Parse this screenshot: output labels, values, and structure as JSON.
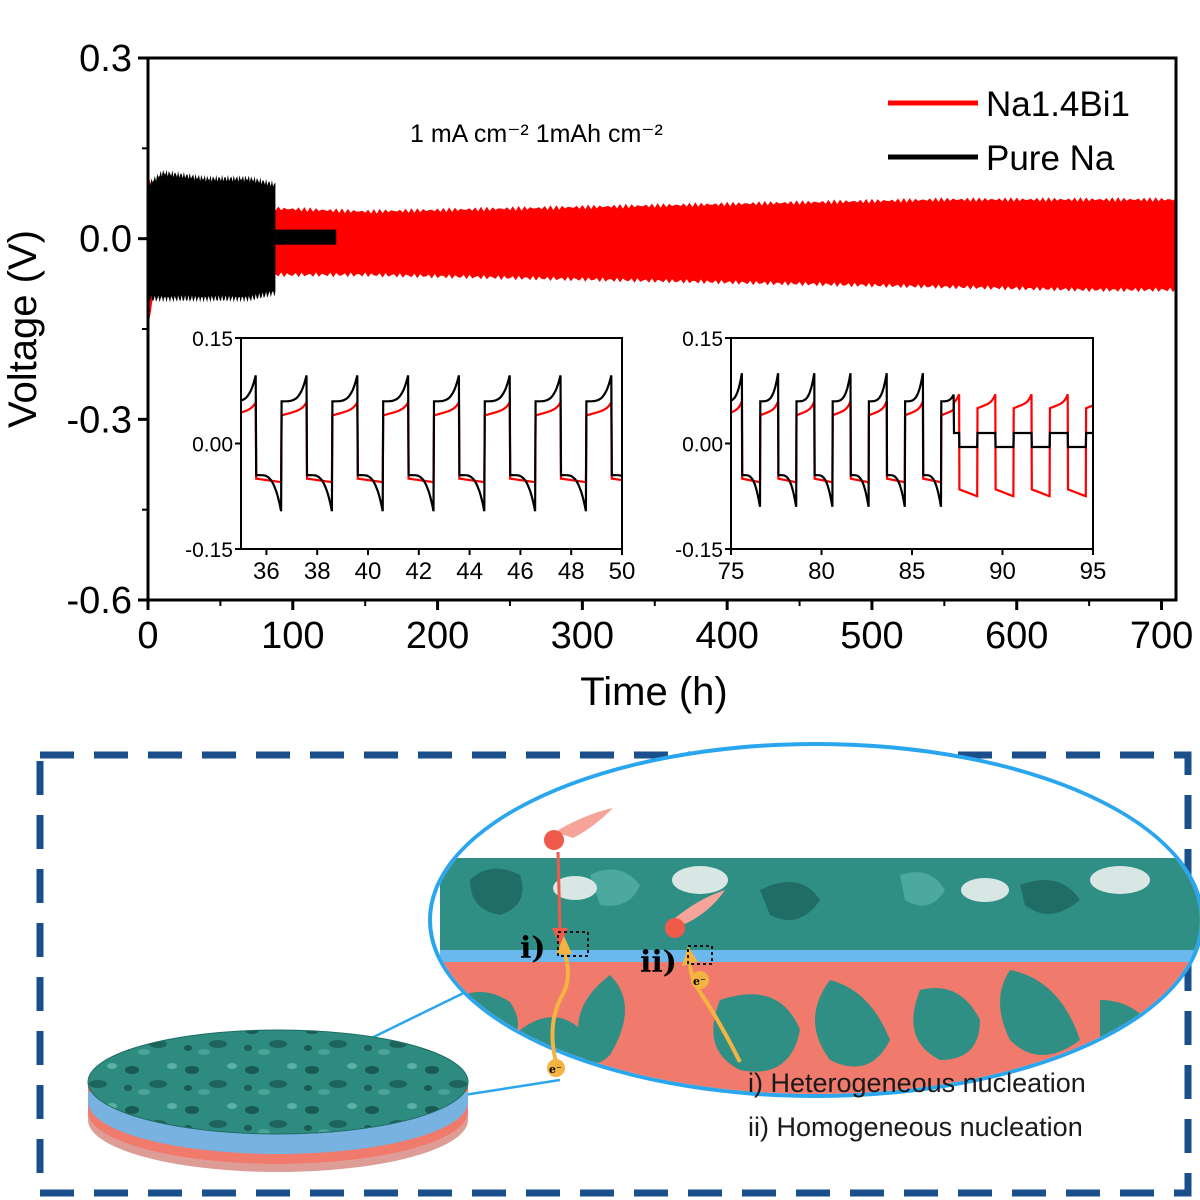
{
  "chart_data": [
    {
      "type": "line",
      "title": "",
      "xlabel": "Time (h)",
      "ylabel": "Voltage (V)",
      "xlim": [
        0,
        710
      ],
      "ylim": [
        -0.6,
        0.3
      ],
      "xticks": [
        "0",
        "100",
        "200",
        "300",
        "400",
        "500",
        "600",
        "700"
      ],
      "yticks": [
        "-0.6",
        "-0.3",
        "0.0",
        "0.3"
      ],
      "annotation": "1 mA cm⁻² 1mAh cm⁻²",
      "legend_position": "top-right",
      "series": [
        {
          "name": "Na1.4Bi1",
          "color": "#ff0000",
          "envelope": {
            "x": [
              0,
              5,
              20,
              60,
              90,
              150,
              250,
              350,
              450,
              550,
              650,
              710
            ],
            "upper": [
              0.11,
              0.06,
              0.05,
              0.05,
              0.05,
              0.045,
              0.05,
              0.055,
              0.06,
              0.065,
              0.065,
              0.065
            ],
            "lower": [
              -0.15,
              -0.07,
              -0.06,
              -0.06,
              -0.06,
              -0.06,
              -0.065,
              -0.07,
              -0.075,
              -0.08,
              -0.085,
              -0.085
            ]
          }
        },
        {
          "name": "Pure Na",
          "color": "#000000",
          "envelope": {
            "x": [
              0,
              10,
              40,
              70,
              88
            ],
            "upper": [
              0.09,
              0.11,
              0.1,
              0.1,
              0.09
            ],
            "lower": [
              -0.1,
              -0.1,
              -0.1,
              -0.1,
              -0.09
            ]
          },
          "after_failure": {
            "x": [
              88,
              130
            ],
            "upper": 0.015,
            "lower": -0.01
          }
        }
      ]
    },
    {
      "type": "line",
      "title": "",
      "xlim": [
        35,
        50
      ],
      "ylim": [
        -0.15,
        0.15
      ],
      "xticks": [
        "36",
        "38",
        "40",
        "42",
        "44",
        "46",
        "48",
        "50"
      ],
      "yticks": [
        "-0.15",
        "0.00",
        "0.15"
      ],
      "cycle_period_h": 2,
      "series": [
        {
          "name": "Na1.4Bi1",
          "color": "#ff0000",
          "plate_voltage": 0.05,
          "strip_voltage": -0.055
        },
        {
          "name": "Pure Na",
          "color": "#000000",
          "plate_voltage": 0.06,
          "plate_peak": 0.1,
          "strip_voltage": -0.045,
          "strip_peak": -0.1
        }
      ]
    },
    {
      "type": "line",
      "title": "",
      "xlim": [
        75,
        95
      ],
      "ylim": [
        -0.15,
        0.15
      ],
      "xticks": [
        "75",
        "80",
        "85",
        "90",
        "95"
      ],
      "yticks": [
        "-0.15",
        "0.00",
        "0.15"
      ],
      "cycle_period_h": 2,
      "short_circuit_h": 87.3,
      "series": [
        {
          "name": "Na1.4Bi1",
          "color": "#ff0000",
          "plate_voltage": 0.05,
          "strip_voltage": -0.055
        },
        {
          "name": "Pure Na",
          "color": "#000000",
          "plate_voltage": 0.06,
          "plate_peak": 0.1,
          "strip_voltage": -0.045,
          "strip_peak": -0.09,
          "after_short_plate": 0.015,
          "after_short_strip": -0.005
        }
      ]
    }
  ],
  "schematic": {
    "labels": {
      "i": "i)",
      "ii": "ii)",
      "electron": "e⁻"
    },
    "captions": [
      "i) Heterogeneous nucleation",
      "ii) Homogeneous nucleation"
    ],
    "colors": {
      "frame": "#1a4f8b",
      "teal": "#2f8f85",
      "salmon": "#f07a6c",
      "blue_layer": "#6ab8ee",
      "circle_border": "#2aa6ee",
      "arrow": "#f5b441"
    }
  }
}
